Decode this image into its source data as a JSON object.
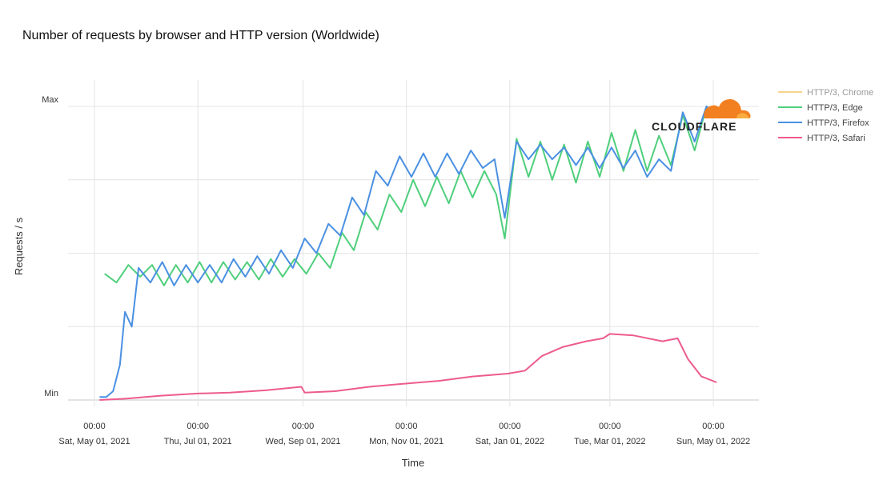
{
  "chart_data": {
    "type": "line",
    "title": "Number of requests by browser and HTTP version (Worldwide)",
    "xlabel": "Time",
    "ylabel": "Requests / s",
    "y_tick_labels": [
      "Min",
      "Max"
    ],
    "ylim": [
      0,
      1
    ],
    "grid": true,
    "legend_position": "top-right",
    "x_ticks": [
      {
        "date": "2021-05-01",
        "line1": "00:00",
        "line2": "Sat, May 01, 2021"
      },
      {
        "date": "2021-07-01",
        "line1": "00:00",
        "line2": "Thu, Jul 01, 2021"
      },
      {
        "date": "2021-09-01",
        "line1": "00:00",
        "line2": "Wed, Sep 01, 2021"
      },
      {
        "date": "2021-11-01",
        "line1": "00:00",
        "line2": "Mon, Nov 01, 2021"
      },
      {
        "date": "2022-01-01",
        "line1": "00:00",
        "line2": "Sat, Jan 01, 2022"
      },
      {
        "date": "2022-03-01",
        "line1": "00:00",
        "line2": "Tue, Mar 01, 2022"
      },
      {
        "date": "2022-05-01",
        "line1": "00:00",
        "line2": "Sun, May 01, 2022"
      }
    ],
    "series": [
      {
        "name": "HTTP/3, Chrome",
        "color": "#f8d38c",
        "hidden": true,
        "points": []
      },
      {
        "name": "HTTP/3, Edge",
        "color": "#4fcf7c",
        "points": [
          {
            "x": "2021-05-07",
            "y": 0.43
          },
          {
            "x": "2021-05-14",
            "y": 0.4
          },
          {
            "x": "2021-05-21",
            "y": 0.46
          },
          {
            "x": "2021-05-28",
            "y": 0.42
          },
          {
            "x": "2021-06-04",
            "y": 0.46
          },
          {
            "x": "2021-06-11",
            "y": 0.39
          },
          {
            "x": "2021-06-18",
            "y": 0.46
          },
          {
            "x": "2021-06-25",
            "y": 0.4
          },
          {
            "x": "2021-07-02",
            "y": 0.47
          },
          {
            "x": "2021-07-09",
            "y": 0.4
          },
          {
            "x": "2021-07-16",
            "y": 0.47
          },
          {
            "x": "2021-07-23",
            "y": 0.41
          },
          {
            "x": "2021-07-30",
            "y": 0.47
          },
          {
            "x": "2021-08-06",
            "y": 0.41
          },
          {
            "x": "2021-08-13",
            "y": 0.48
          },
          {
            "x": "2021-08-20",
            "y": 0.42
          },
          {
            "x": "2021-08-27",
            "y": 0.48
          },
          {
            "x": "2021-09-03",
            "y": 0.43
          },
          {
            "x": "2021-09-10",
            "y": 0.5
          },
          {
            "x": "2021-09-17",
            "y": 0.45
          },
          {
            "x": "2021-09-24",
            "y": 0.57
          },
          {
            "x": "2021-10-01",
            "y": 0.51
          },
          {
            "x": "2021-10-08",
            "y": 0.64
          },
          {
            "x": "2021-10-15",
            "y": 0.58
          },
          {
            "x": "2021-10-22",
            "y": 0.7
          },
          {
            "x": "2021-10-29",
            "y": 0.64
          },
          {
            "x": "2021-11-05",
            "y": 0.75
          },
          {
            "x": "2021-11-12",
            "y": 0.66
          },
          {
            "x": "2021-11-19",
            "y": 0.76
          },
          {
            "x": "2021-11-26",
            "y": 0.67
          },
          {
            "x": "2021-12-03",
            "y": 0.78
          },
          {
            "x": "2021-12-10",
            "y": 0.69
          },
          {
            "x": "2021-12-17",
            "y": 0.78
          },
          {
            "x": "2021-12-24",
            "y": 0.7
          },
          {
            "x": "2021-12-29",
            "y": 0.55
          },
          {
            "x": "2022-01-05",
            "y": 0.89
          },
          {
            "x": "2022-01-12",
            "y": 0.76
          },
          {
            "x": "2022-01-19",
            "y": 0.88
          },
          {
            "x": "2022-01-26",
            "y": 0.75
          },
          {
            "x": "2022-02-02",
            "y": 0.87
          },
          {
            "x": "2022-02-09",
            "y": 0.74
          },
          {
            "x": "2022-02-16",
            "y": 0.88
          },
          {
            "x": "2022-02-23",
            "y": 0.76
          },
          {
            "x": "2022-03-02",
            "y": 0.91
          },
          {
            "x": "2022-03-09",
            "y": 0.78
          },
          {
            "x": "2022-03-16",
            "y": 0.92
          },
          {
            "x": "2022-03-23",
            "y": 0.78
          },
          {
            "x": "2022-03-30",
            "y": 0.9
          },
          {
            "x": "2022-04-06",
            "y": 0.8
          },
          {
            "x": "2022-04-13",
            "y": 0.97
          },
          {
            "x": "2022-04-20",
            "y": 0.85
          },
          {
            "x": "2022-04-27",
            "y": 1.0
          },
          {
            "x": "2022-05-03",
            "y": 0.96
          }
        ]
      },
      {
        "name": "HTTP/3, Firefox",
        "color": "#4a90e2",
        "points": [
          {
            "x": "2021-05-04",
            "y": 0.01
          },
          {
            "x": "2021-05-08",
            "y": 0.01
          },
          {
            "x": "2021-05-12",
            "y": 0.03
          },
          {
            "x": "2021-05-16",
            "y": 0.12
          },
          {
            "x": "2021-05-19",
            "y": 0.3
          },
          {
            "x": "2021-05-23",
            "y": 0.25
          },
          {
            "x": "2021-05-27",
            "y": 0.45
          },
          {
            "x": "2021-06-03",
            "y": 0.4
          },
          {
            "x": "2021-06-10",
            "y": 0.47
          },
          {
            "x": "2021-06-17",
            "y": 0.39
          },
          {
            "x": "2021-06-24",
            "y": 0.46
          },
          {
            "x": "2021-07-01",
            "y": 0.4
          },
          {
            "x": "2021-07-08",
            "y": 0.46
          },
          {
            "x": "2021-07-15",
            "y": 0.4
          },
          {
            "x": "2021-07-22",
            "y": 0.48
          },
          {
            "x": "2021-07-29",
            "y": 0.42
          },
          {
            "x": "2021-08-05",
            "y": 0.49
          },
          {
            "x": "2021-08-12",
            "y": 0.43
          },
          {
            "x": "2021-08-19",
            "y": 0.51
          },
          {
            "x": "2021-08-26",
            "y": 0.45
          },
          {
            "x": "2021-09-02",
            "y": 0.55
          },
          {
            "x": "2021-09-09",
            "y": 0.5
          },
          {
            "x": "2021-09-16",
            "y": 0.6
          },
          {
            "x": "2021-09-23",
            "y": 0.56
          },
          {
            "x": "2021-09-30",
            "y": 0.69
          },
          {
            "x": "2021-10-07",
            "y": 0.63
          },
          {
            "x": "2021-10-14",
            "y": 0.78
          },
          {
            "x": "2021-10-21",
            "y": 0.73
          },
          {
            "x": "2021-10-28",
            "y": 0.83
          },
          {
            "x": "2021-11-04",
            "y": 0.76
          },
          {
            "x": "2021-11-11",
            "y": 0.84
          },
          {
            "x": "2021-11-18",
            "y": 0.76
          },
          {
            "x": "2021-11-25",
            "y": 0.84
          },
          {
            "x": "2021-12-02",
            "y": 0.77
          },
          {
            "x": "2021-12-09",
            "y": 0.85
          },
          {
            "x": "2021-12-16",
            "y": 0.79
          },
          {
            "x": "2021-12-23",
            "y": 0.82
          },
          {
            "x": "2021-12-29",
            "y": 0.62
          },
          {
            "x": "2022-01-05",
            "y": 0.88
          },
          {
            "x": "2022-01-12",
            "y": 0.82
          },
          {
            "x": "2022-01-19",
            "y": 0.87
          },
          {
            "x": "2022-01-26",
            "y": 0.82
          },
          {
            "x": "2022-02-02",
            "y": 0.86
          },
          {
            "x": "2022-02-09",
            "y": 0.8
          },
          {
            "x": "2022-02-16",
            "y": 0.86
          },
          {
            "x": "2022-02-23",
            "y": 0.79
          },
          {
            "x": "2022-03-02",
            "y": 0.86
          },
          {
            "x": "2022-03-09",
            "y": 0.79
          },
          {
            "x": "2022-03-16",
            "y": 0.85
          },
          {
            "x": "2022-03-23",
            "y": 0.76
          },
          {
            "x": "2022-03-30",
            "y": 0.82
          },
          {
            "x": "2022-04-06",
            "y": 0.78
          },
          {
            "x": "2022-04-13",
            "y": 0.98
          },
          {
            "x": "2022-04-20",
            "y": 0.88
          },
          {
            "x": "2022-04-27",
            "y": 1.0
          },
          {
            "x": "2022-05-03",
            "y": 0.97
          }
        ]
      },
      {
        "name": "HTTP/3, Safari",
        "color": "#ed5b8f",
        "points": [
          {
            "x": "2021-05-04",
            "y": 0.0
          },
          {
            "x": "2021-05-20",
            "y": 0.005
          },
          {
            "x": "2021-06-10",
            "y": 0.015
          },
          {
            "x": "2021-07-01",
            "y": 0.022
          },
          {
            "x": "2021-07-20",
            "y": 0.025
          },
          {
            "x": "2021-08-10",
            "y": 0.033
          },
          {
            "x": "2021-08-31",
            "y": 0.045
          },
          {
            "x": "2021-09-02",
            "y": 0.025
          },
          {
            "x": "2021-09-20",
            "y": 0.03
          },
          {
            "x": "2021-10-10",
            "y": 0.045
          },
          {
            "x": "2021-10-30",
            "y": 0.055
          },
          {
            "x": "2021-11-20",
            "y": 0.065
          },
          {
            "x": "2021-12-10",
            "y": 0.08
          },
          {
            "x": "2021-12-31",
            "y": 0.09
          },
          {
            "x": "2022-01-10",
            "y": 0.1
          },
          {
            "x": "2022-01-20",
            "y": 0.15
          },
          {
            "x": "2022-02-01",
            "y": 0.18
          },
          {
            "x": "2022-02-15",
            "y": 0.2
          },
          {
            "x": "2022-02-25",
            "y": 0.21
          },
          {
            "x": "2022-03-01",
            "y": 0.225
          },
          {
            "x": "2022-03-15",
            "y": 0.22
          },
          {
            "x": "2022-04-01",
            "y": 0.2
          },
          {
            "x": "2022-04-10",
            "y": 0.21
          },
          {
            "x": "2022-04-16",
            "y": 0.14
          },
          {
            "x": "2022-04-24",
            "y": 0.08
          },
          {
            "x": "2022-05-03",
            "y": 0.06
          }
        ]
      }
    ]
  },
  "logo": {
    "text": "CLOUDFLARE"
  }
}
